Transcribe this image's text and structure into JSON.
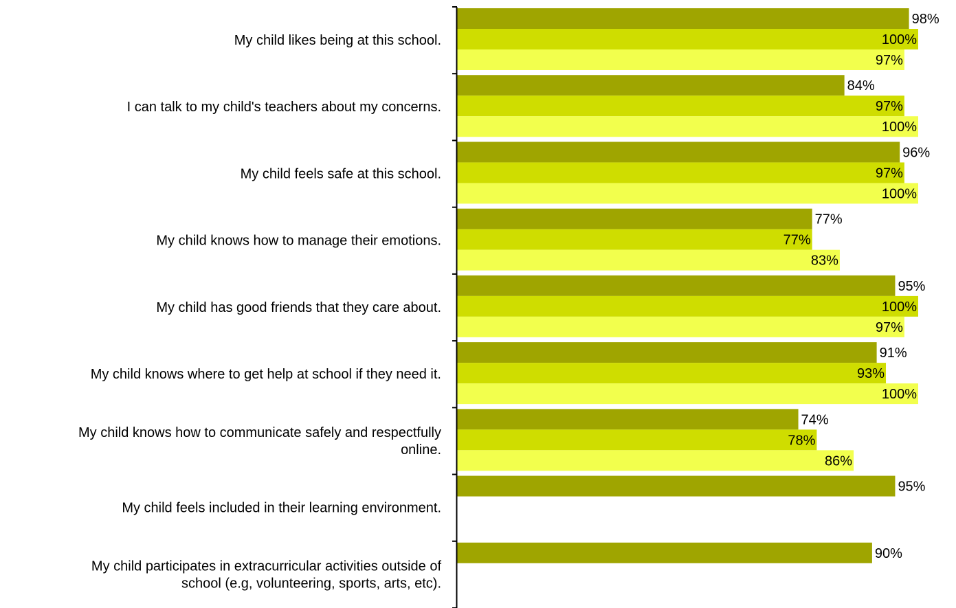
{
  "chart_data": {
    "type": "bar",
    "orientation": "horizontal",
    "title": "",
    "xlabel": "",
    "ylabel": "",
    "xlim": [
      0,
      100
    ],
    "grid": false,
    "legend": "none",
    "value_suffix": "%",
    "categories": [
      [
        "My child likes being at this school."
      ],
      [
        "I can talk to my child's teachers about my concerns."
      ],
      [
        "My child feels safe at this school."
      ],
      [
        "My child knows how to manage their emotions."
      ],
      [
        "My child has good friends that they care about."
      ],
      [
        "My child knows where to get help at school if they need it."
      ],
      [
        "My child knows how to communicate safely and respectfully",
        "online."
      ],
      [
        "My child feels included in their learning environment."
      ],
      [
        "My child participates in extracurricular activities outside of",
        "school (e.g, volunteering, sports, arts, etc)."
      ]
    ],
    "series": [
      {
        "color": "#9fa500",
        "values": [
          98,
          84,
          96,
          77,
          95,
          91,
          74,
          95,
          90
        ]
      },
      {
        "color": "#cfdd00",
        "values": [
          100,
          97,
          97,
          77,
          100,
          93,
          78,
          null,
          null
        ]
      },
      {
        "color": "#f2ff4d",
        "values": [
          97,
          100,
          100,
          83,
          97,
          100,
          86,
          null,
          null
        ]
      }
    ]
  }
}
